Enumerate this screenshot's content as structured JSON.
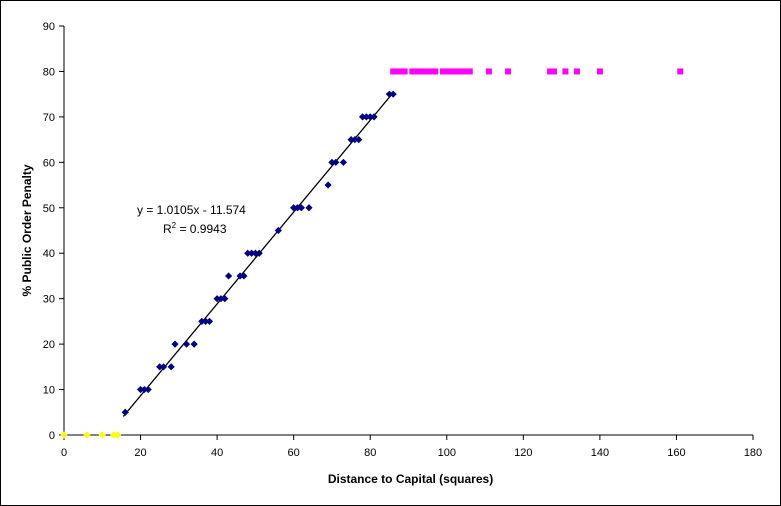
{
  "chart_data": {
    "type": "scatter",
    "title": "",
    "xlabel": "Distance to Capital (squares)",
    "ylabel": "% Public Order Penalty",
    "xlim": [
      0,
      180
    ],
    "ylim": [
      0,
      90
    ],
    "x_ticks": [
      0,
      20,
      40,
      60,
      80,
      100,
      120,
      140,
      160,
      180
    ],
    "y_ticks": [
      0,
      10,
      20,
      30,
      40,
      50,
      60,
      70,
      80,
      90
    ],
    "grid": false,
    "colors": {
      "main": "#000080",
      "capped": "#ff00ff",
      "zero": "#ffff00",
      "trend": "#000000"
    },
    "series": [
      {
        "color": "#000080",
        "marker": "diamond",
        "points": [
          [
            16,
            5
          ],
          [
            20,
            10
          ],
          [
            21,
            10
          ],
          [
            22,
            10
          ],
          [
            25,
            15
          ],
          [
            26,
            15
          ],
          [
            28,
            15
          ],
          [
            29,
            20
          ],
          [
            32,
            20
          ],
          [
            34,
            20
          ],
          [
            36,
            25
          ],
          [
            37,
            25
          ],
          [
            38,
            25
          ],
          [
            40,
            30
          ],
          [
            41,
            30
          ],
          [
            42,
            30
          ],
          [
            43,
            35
          ],
          [
            46,
            35
          ],
          [
            47,
            35
          ],
          [
            48,
            40
          ],
          [
            49,
            40
          ],
          [
            50,
            40
          ],
          [
            51,
            40
          ],
          [
            56,
            45
          ],
          [
            60,
            50
          ],
          [
            61,
            50
          ],
          [
            62,
            50
          ],
          [
            64,
            50
          ],
          [
            69,
            55
          ],
          [
            70,
            60
          ],
          [
            71,
            60
          ],
          [
            73,
            60
          ],
          [
            75,
            65
          ],
          [
            76,
            65
          ],
          [
            77,
            65
          ],
          [
            78,
            70
          ],
          [
            79,
            70
          ],
          [
            80,
            70
          ],
          [
            81,
            70
          ],
          [
            85,
            75
          ],
          [
            86,
            75
          ]
        ]
      },
      {
        "color": "#ff00ff",
        "marker": "square",
        "points": [
          [
            86,
            80
          ],
          [
            87,
            80
          ],
          [
            88,
            80
          ],
          [
            89,
            80
          ],
          [
            91,
            80
          ],
          [
            92,
            80
          ],
          [
            93,
            80
          ],
          [
            94,
            80
          ],
          [
            95,
            80
          ],
          [
            96,
            80
          ],
          [
            97,
            80
          ],
          [
            99,
            80
          ],
          [
            100,
            80
          ],
          [
            101,
            80
          ],
          [
            102,
            80
          ],
          [
            103,
            80
          ],
          [
            104,
            80
          ],
          [
            105,
            80
          ],
          [
            106,
            80
          ],
          [
            111,
            80
          ],
          [
            116,
            80
          ],
          [
            127,
            80
          ],
          [
            128,
            80
          ],
          [
            131,
            80
          ],
          [
            134,
            80
          ],
          [
            140,
            80
          ],
          [
            161,
            80
          ]
        ]
      },
      {
        "color": "#ffff00",
        "marker": "diamond",
        "points": [
          [
            0,
            0
          ],
          [
            6,
            0
          ],
          [
            10,
            0
          ],
          [
            13,
            0
          ],
          [
            14,
            0
          ]
        ]
      }
    ],
    "trendline": {
      "slope": 1.0105,
      "intercept": -11.574,
      "x_range": [
        15.5,
        86
      ]
    },
    "annotations": {
      "equation": "y = 1.0105x - 11.574",
      "r2_prefix": "R",
      "r2_sup": "2",
      "r2_suffix": " = 0.9943"
    }
  }
}
